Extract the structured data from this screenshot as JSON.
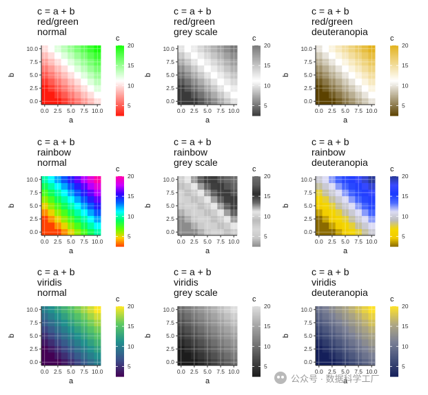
{
  "chart_data": [
    {
      "type": "heatmap",
      "title": [
        "c = a + b",
        "red/green",
        "normal"
      ],
      "xlabel": "a",
      "ylabel": "b",
      "legend_title": "c",
      "palette": "redgreen",
      "vision": "normal",
      "x": [
        0,
        1.25,
        2.5,
        3.75,
        5,
        6.25,
        7.5,
        8.75,
        10
      ],
      "y": [
        0,
        1.25,
        2.5,
        3.75,
        5,
        6.25,
        7.5,
        8.75,
        10
      ],
      "value_rule": "c = a + b",
      "x_ticks": [
        "0.0",
        "2.5",
        "5.0",
        "7.5",
        "10.0"
      ],
      "y_ticks": [
        "0.0",
        "2.5",
        "5.0",
        "7.5",
        "10.0"
      ],
      "xlim": [
        0,
        10
      ],
      "ylim": [
        0,
        10
      ],
      "legend_ticks": [
        5,
        10,
        15,
        20
      ],
      "clim": [
        2.5,
        20
      ]
    },
    {
      "type": "heatmap",
      "title": [
        "c = a + b",
        "red/green",
        "grey scale"
      ],
      "xlabel": "a",
      "ylabel": "b",
      "legend_title": "c",
      "palette": "redgreen",
      "vision": "grey",
      "x": [
        0,
        1.25,
        2.5,
        3.75,
        5,
        6.25,
        7.5,
        8.75,
        10
      ],
      "y": [
        0,
        1.25,
        2.5,
        3.75,
        5,
        6.25,
        7.5,
        8.75,
        10
      ],
      "value_rule": "c = a + b",
      "x_ticks": [
        "0.0",
        "2.5",
        "5.0",
        "7.5",
        "10.0"
      ],
      "y_ticks": [
        "0.0",
        "2.5",
        "5.0",
        "7.5",
        "10.0"
      ],
      "xlim": [
        0,
        10
      ],
      "ylim": [
        0,
        10
      ],
      "legend_ticks": [
        5,
        10,
        15,
        20
      ],
      "clim": [
        2.5,
        20
      ]
    },
    {
      "type": "heatmap",
      "title": [
        "c = a + b",
        "red/green",
        "deuteranopia"
      ],
      "xlabel": "a",
      "ylabel": "b",
      "legend_title": "c",
      "palette": "redgreen",
      "vision": "deutan",
      "x": [
        0,
        1.25,
        2.5,
        3.75,
        5,
        6.25,
        7.5,
        8.75,
        10
      ],
      "y": [
        0,
        1.25,
        2.5,
        3.75,
        5,
        6.25,
        7.5,
        8.75,
        10
      ],
      "value_rule": "c = a + b",
      "x_ticks": [
        "0.0",
        "2.5",
        "5.0",
        "7.5",
        "10.0"
      ],
      "y_ticks": [
        "0.0",
        "2.5",
        "5.0",
        "7.5",
        "10.0"
      ],
      "xlim": [
        0,
        10
      ],
      "ylim": [
        0,
        10
      ],
      "legend_ticks": [
        5,
        10,
        15,
        20
      ],
      "clim": [
        2.5,
        20
      ]
    },
    {
      "type": "heatmap",
      "title": [
        "c = a + b",
        "rainbow",
        "normal"
      ],
      "xlabel": "a",
      "ylabel": "b",
      "legend_title": "c",
      "palette": "rainbow",
      "vision": "normal",
      "x": [
        0,
        1.25,
        2.5,
        3.75,
        5,
        6.25,
        7.5,
        8.75,
        10
      ],
      "y": [
        0,
        1.25,
        2.5,
        3.75,
        5,
        6.25,
        7.5,
        8.75,
        10
      ],
      "value_rule": "c = a + b",
      "x_ticks": [
        "0.0",
        "2.5",
        "5.0",
        "7.5",
        "10.0"
      ],
      "y_ticks": [
        "0.0",
        "2.5",
        "5.0",
        "7.5",
        "10.0"
      ],
      "xlim": [
        0,
        10
      ],
      "ylim": [
        0,
        10
      ],
      "legend_ticks": [
        5,
        10,
        15,
        20
      ],
      "clim": [
        2.5,
        20
      ]
    },
    {
      "type": "heatmap",
      "title": [
        "c = a + b",
        "rainbow",
        "grey scale"
      ],
      "xlabel": "a",
      "ylabel": "b",
      "legend_title": "c",
      "palette": "rainbow",
      "vision": "grey",
      "x": [
        0,
        1.25,
        2.5,
        3.75,
        5,
        6.25,
        7.5,
        8.75,
        10
      ],
      "y": [
        0,
        1.25,
        2.5,
        3.75,
        5,
        6.25,
        7.5,
        8.75,
        10
      ],
      "value_rule": "c = a + b",
      "x_ticks": [
        "0.0",
        "2.5",
        "5.0",
        "7.5",
        "10.0"
      ],
      "y_ticks": [
        "0.0",
        "2.5",
        "5.0",
        "7.5",
        "10.0"
      ],
      "xlim": [
        0,
        10
      ],
      "ylim": [
        0,
        10
      ],
      "legend_ticks": [
        5,
        10,
        15,
        20
      ],
      "clim": [
        2.5,
        20
      ]
    },
    {
      "type": "heatmap",
      "title": [
        "c = a + b",
        "rainbow",
        "deuteranopia"
      ],
      "xlabel": "a",
      "ylabel": "b",
      "legend_title": "c",
      "palette": "rainbow",
      "vision": "deutan",
      "x": [
        0,
        1.25,
        2.5,
        3.75,
        5,
        6.25,
        7.5,
        8.75,
        10
      ],
      "y": [
        0,
        1.25,
        2.5,
        3.75,
        5,
        6.25,
        7.5,
        8.75,
        10
      ],
      "value_rule": "c = a + b",
      "x_ticks": [
        "0.0",
        "2.5",
        "5.0",
        "7.5",
        "10.0"
      ],
      "y_ticks": [
        "0.0",
        "2.5",
        "5.0",
        "7.5",
        "10.0"
      ],
      "xlim": [
        0,
        10
      ],
      "ylim": [
        0,
        10
      ],
      "legend_ticks": [
        5,
        10,
        15,
        20
      ],
      "clim": [
        2.5,
        20
      ]
    },
    {
      "type": "heatmap",
      "title": [
        "c = a + b",
        "viridis",
        "normal"
      ],
      "xlabel": "a",
      "ylabel": "b",
      "legend_title": "c",
      "palette": "viridis",
      "vision": "normal",
      "x": [
        0,
        1.25,
        2.5,
        3.75,
        5,
        6.25,
        7.5,
        8.75,
        10
      ],
      "y": [
        0,
        1.25,
        2.5,
        3.75,
        5,
        6.25,
        7.5,
        8.75,
        10
      ],
      "value_rule": "c = a + b",
      "x_ticks": [
        "0.0",
        "2.5",
        "5.0",
        "7.5",
        "10.0"
      ],
      "y_ticks": [
        "0.0",
        "2.5",
        "5.0",
        "7.5",
        "10.0"
      ],
      "xlim": [
        0,
        10
      ],
      "ylim": [
        0,
        10
      ],
      "legend_ticks": [
        5,
        10,
        15,
        20
      ],
      "clim": [
        2.5,
        20
      ]
    },
    {
      "type": "heatmap",
      "title": [
        "c = a + b",
        "viridis",
        "grey scale"
      ],
      "xlabel": "a",
      "ylabel": "b",
      "legend_title": "c",
      "palette": "viridis",
      "vision": "grey",
      "x": [
        0,
        1.25,
        2.5,
        3.75,
        5,
        6.25,
        7.5,
        8.75,
        10
      ],
      "y": [
        0,
        1.25,
        2.5,
        3.75,
        5,
        6.25,
        7.5,
        8.75,
        10
      ],
      "value_rule": "c = a + b",
      "x_ticks": [
        "0.0",
        "2.5",
        "5.0",
        "7.5",
        "10.0"
      ],
      "y_ticks": [
        "0.0",
        "2.5",
        "5.0",
        "7.5",
        "10.0"
      ],
      "xlim": [
        0,
        10
      ],
      "ylim": [
        0,
        10
      ],
      "legend_ticks": [
        5,
        10,
        15,
        20
      ],
      "clim": [
        2.5,
        20
      ]
    },
    {
      "type": "heatmap",
      "title": [
        "c = a + b",
        "viridis",
        "deuteranopia"
      ],
      "xlabel": "a",
      "ylabel": "b",
      "legend_title": "c",
      "palette": "viridis",
      "vision": "deutan",
      "x": [
        0,
        1.25,
        2.5,
        3.75,
        5,
        6.25,
        7.5,
        8.75,
        10
      ],
      "y": [
        0,
        1.25,
        2.5,
        3.75,
        5,
        6.25,
        7.5,
        8.75,
        10
      ],
      "value_rule": "c = a + b",
      "x_ticks": [
        "0.0",
        "2.5",
        "5.0",
        "7.5",
        "10.0"
      ],
      "y_ticks": [
        "0.0",
        "2.5",
        "5.0",
        "7.5",
        "10.0"
      ],
      "xlim": [
        0,
        10
      ],
      "ylim": [
        0,
        10
      ],
      "legend_ticks": [
        5,
        10,
        15,
        20
      ],
      "clim": [
        2.5,
        20
      ]
    }
  ],
  "palettes": {
    "redgreen": {
      "normal": [
        "#ff1a0d",
        "#ffffff",
        "#19ff0d"
      ],
      "grey": [
        "#3a3a3a",
        "#ffffff",
        "#7a7a7a"
      ],
      "deutan": [
        "#5c4200",
        "#ffffff",
        "#e3b320"
      ]
    },
    "rainbow": {
      "normal": [
        "#ff4000",
        "#ffcc00",
        "#66ff00",
        "#00ff66",
        "#00ffff",
        "#0066ff",
        "#3300ff",
        "#cc00ff",
        "#ff00aa"
      ],
      "grey": [
        "#8c8c8c",
        "#c8c8c8",
        "#d8d8d8",
        "#bcbcbc",
        "#e6e6e6",
        "#6a6a6a",
        "#2e2e2e",
        "#5a5a5a",
        "#6e6e6e"
      ],
      "deutan": [
        "#8a6a00",
        "#f2cc00",
        "#f5d800",
        "#bcbcbc",
        "#dcdcf5",
        "#4a6aff",
        "#1a3aff",
        "#3a4aff",
        "#2a3a99"
      ]
    },
    "viridis": {
      "normal": [
        "#440154",
        "#3b528b",
        "#21908d",
        "#5dc963",
        "#fde725"
      ],
      "grey": [
        "#1c1c1c",
        "#4a4a4a",
        "#7c7c7c",
        "#aaaaaa",
        "#dddddd"
      ],
      "deutan": [
        "#141f5a",
        "#45517a",
        "#7b8095",
        "#b0a882",
        "#fde12a"
      ]
    }
  },
  "watermark": {
    "text": "公众号 · 数据科学工厂",
    "icon": "wechat-logo-icon"
  }
}
